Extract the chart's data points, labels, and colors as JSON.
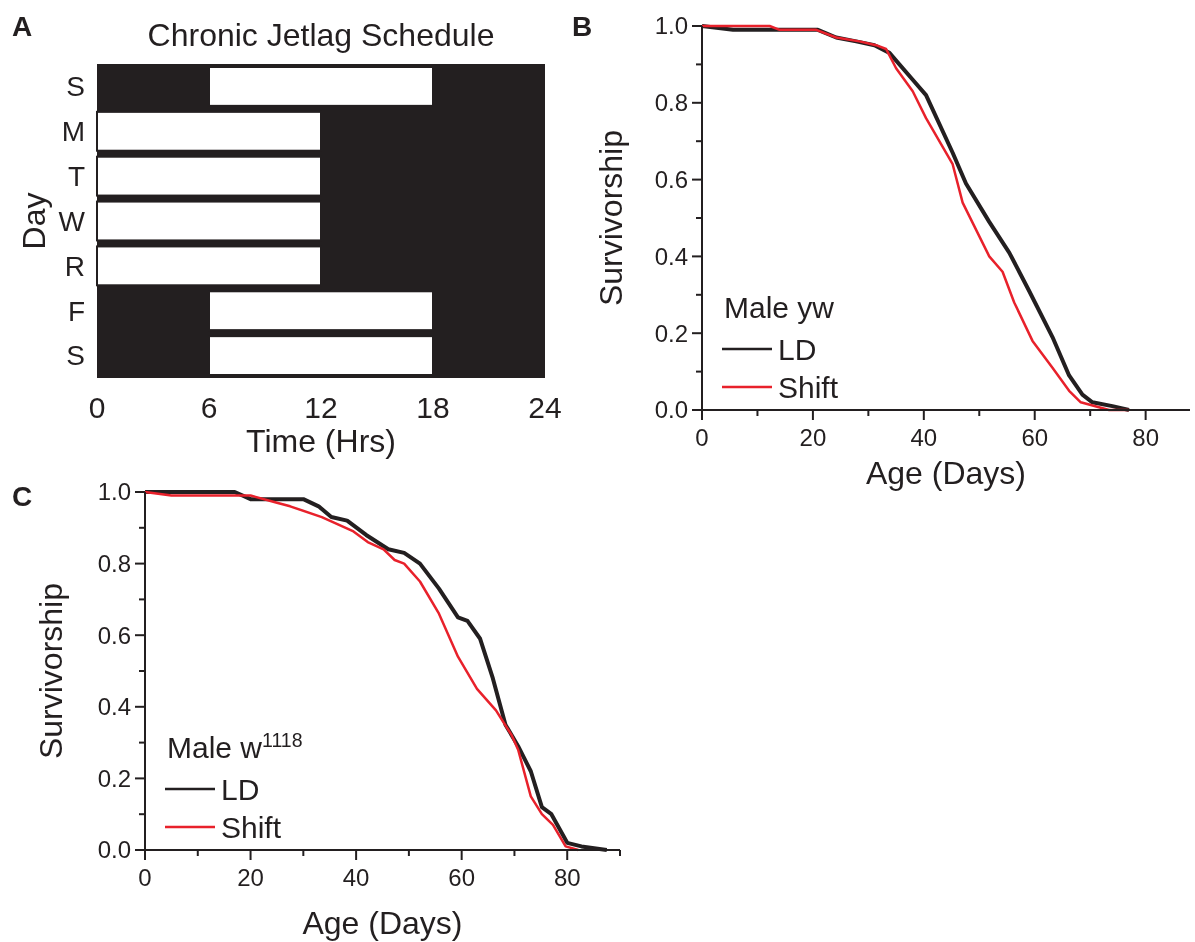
{
  "chart_data": [
    {
      "type": "bar",
      "orientation": "horizontal",
      "title": "Chronic Jetlag Schedule",
      "xlabel": "Time (Hrs)",
      "ylabel": "Day",
      "annotations": [
        "A"
      ],
      "categories": [
        "S",
        "M",
        "T",
        "W",
        "R",
        "F",
        "S"
      ],
      "base": [
        6,
        0,
        0,
        0,
        0,
        6,
        6
      ],
      "values": [
        12,
        12,
        12,
        12,
        12,
        12,
        12
      ],
      "color": "#ffffff",
      "bands": [
        {
          "axis": "x",
          "from": 0,
          "to": 24,
          "color": "#231f20"
        }
      ],
      "xlim": [
        0,
        24
      ],
      "xticks": [
        0,
        6,
        12,
        18,
        24
      ],
      "grid": false
    },
    {
      "type": "line",
      "xlabel": "Age (Days)",
      "ylabel": "Survivorship",
      "legend_title": "Male yw",
      "legend": "bottom left",
      "annotations": [
        "B"
      ],
      "series": [
        {
          "name": "LD",
          "color": "#231f20",
          "x": [
            0,
            5.6,
            13.4,
            20.9,
            24.2,
            27.8,
            31.1,
            33.8,
            38,
            40.4,
            45.2,
            47.6,
            51.8,
            55.4,
            59,
            63.2,
            66.2,
            68.6,
            70.4,
            74,
            77
          ],
          "values": [
            1,
            0.99,
            0.99,
            0.99,
            0.97,
            0.96,
            0.95,
            0.93,
            0.86,
            0.82,
            0.67,
            0.59,
            0.49,
            0.41,
            0.31,
            0.19,
            0.09,
            0.04,
            0.02,
            0.01,
            0
          ]
        },
        {
          "name": "Shift",
          "color": "#e8212b",
          "x": [
            0,
            12.2,
            14,
            20.6,
            24.2,
            28.4,
            31.4,
            33.2,
            35,
            38,
            40.4,
            45.2,
            47,
            51.8,
            54.2,
            56.3,
            59.6,
            63.2,
            66.2,
            68.3,
            73.4,
            77
          ],
          "values": [
            1,
            1,
            0.99,
            0.99,
            0.97,
            0.96,
            0.95,
            0.94,
            0.89,
            0.83,
            0.76,
            0.64,
            0.54,
            0.4,
            0.36,
            0.28,
            0.18,
            0.11,
            0.05,
            0.02,
            0,
            0
          ]
        }
      ],
      "xlim": [
        0,
        88
      ],
      "xticks": [
        0,
        {
          "value": 10,
          "label": null
        },
        20,
        {
          "value": 30,
          "label": null
        },
        40,
        {
          "value": 50,
          "label": null
        },
        60,
        {
          "value": 70,
          "label": null
        },
        80
      ],
      "ylim": [
        0,
        1
      ],
      "yticks": [
        {
          "value": 0,
          "label": "0.0"
        },
        {
          "value": 0.1,
          "label": null
        },
        0.2,
        {
          "value": 0.3,
          "label": null
        },
        0.4,
        {
          "value": 0.5,
          "label": null
        },
        0.6,
        {
          "value": 0.7,
          "label": null
        },
        0.8,
        {
          "value": 0.9,
          "label": null
        },
        {
          "value": 1,
          "label": "1.0"
        }
      ],
      "grid": false,
      "marker": "none",
      "line_style": "solid"
    },
    {
      "type": "line",
      "xlabel": "Age (Days)",
      "ylabel": "Survivorship",
      "legend_title": "Male w$^{1118}$",
      "legend": "bottom left",
      "annotations": [
        "C"
      ],
      "series": [
        {
          "name": "LD",
          "color": "#231f20",
          "x": [
            0,
            17,
            20,
            30,
            32.9,
            35.3,
            38.3,
            41.9,
            46.1,
            49.1,
            52.1,
            55.7,
            59.3,
            61.1,
            63.5,
            65.9,
            68.3,
            70.7,
            73.1,
            75.2,
            77,
            80,
            82.7,
            87.5
          ],
          "values": [
            1,
            1,
            0.98,
            0.98,
            0.96,
            0.93,
            0.92,
            0.88,
            0.84,
            0.83,
            0.8,
            0.73,
            0.65,
            0.64,
            0.59,
            0.48,
            0.35,
            0.29,
            0.22,
            0.12,
            0.1,
            0.02,
            0.01,
            0
          ]
        },
        {
          "name": "Shift",
          "color": "#e8212b",
          "x": [
            0,
            5,
            20,
            25,
            27.5,
            33.5,
            39.5,
            42.2,
            45.2,
            47.3,
            49.1,
            52.1,
            55.7,
            59.3,
            62.9,
            66.5,
            69.5,
            70.7,
            73.1,
            75.2,
            77.3,
            79.7,
            82.1
          ],
          "values": [
            1,
            0.99,
            0.99,
            0.97,
            0.96,
            0.93,
            0.89,
            0.86,
            0.84,
            0.81,
            0.8,
            0.75,
            0.66,
            0.54,
            0.45,
            0.39,
            0.32,
            0.28,
            0.15,
            0.1,
            0.07,
            0.01,
            0
          ]
        }
      ],
      "xlim": [
        0,
        90
      ],
      "xticks": [
        0,
        {
          "value": 10,
          "label": null
        },
        20,
        {
          "value": 30,
          "label": null
        },
        40,
        {
          "value": 50,
          "label": null
        },
        60,
        {
          "value": 70,
          "label": null
        },
        80,
        {
          "value": 90,
          "label": null
        }
      ],
      "ylim": [
        0,
        1
      ],
      "yticks": [
        {
          "value": 0,
          "label": "0.0"
        },
        {
          "value": 0.1,
          "label": null
        },
        0.2,
        {
          "value": 0.3,
          "label": null
        },
        0.4,
        {
          "value": 0.5,
          "label": null
        },
        0.6,
        {
          "value": 0.7,
          "label": null
        },
        0.8,
        {
          "value": 0.9,
          "label": null
        },
        {
          "value": 1,
          "label": "1.0"
        }
      ],
      "grid": false,
      "marker": "none",
      "line_style": "solid"
    }
  ]
}
